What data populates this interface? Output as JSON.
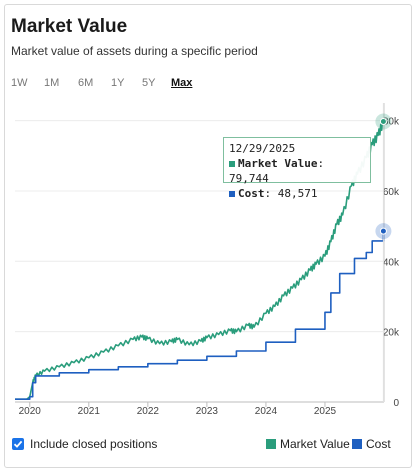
{
  "header": {
    "title": "Market Value",
    "subtitle": "Market value of assets during a specific period"
  },
  "ranges": [
    {
      "label": "1W",
      "active": false
    },
    {
      "label": "1M",
      "active": false
    },
    {
      "label": "6M",
      "active": false
    },
    {
      "label": "1Y",
      "active": false
    },
    {
      "label": "5Y",
      "active": false
    },
    {
      "label": "Max",
      "active": true
    }
  ],
  "tooltip": {
    "date": "12/29/2025",
    "market_value_label": "Market Value",
    "market_value": "79,744",
    "cost_label": "Cost",
    "cost": "48,571"
  },
  "footer": {
    "checkbox_label": "Include closed positions",
    "checkbox_checked": true
  },
  "colors": {
    "market_value": "#2a9d7c",
    "cost": "#1e5fc0"
  },
  "chart_data": {
    "type": "line",
    "x_ticks": [
      "2020",
      "2021",
      "2022",
      "2023",
      "2024",
      "2025"
    ],
    "y_ticks": [
      "0",
      "20k",
      "40k",
      "60k",
      "80k"
    ],
    "ylim": [
      0,
      85000
    ],
    "xlim": [
      2019.75,
      2026.0
    ],
    "legend": [
      "Market Value",
      "Cost"
    ],
    "legend_position": "bottom-right",
    "series": [
      {
        "name": "Market Value",
        "color": "#2a9d7c",
        "points": [
          [
            2019.75,
            800
          ],
          [
            2019.95,
            800
          ],
          [
            2020.0,
            1500
          ],
          [
            2020.05,
            5500
          ],
          [
            2020.1,
            7500
          ],
          [
            2020.25,
            8800
          ],
          [
            2020.5,
            10000
          ],
          [
            2020.75,
            11200
          ],
          [
            2021.0,
            12600
          ],
          [
            2021.25,
            14200
          ],
          [
            2021.5,
            16000
          ],
          [
            2021.75,
            17800
          ],
          [
            2021.9,
            18500
          ],
          [
            2022.0,
            18000
          ],
          [
            2022.2,
            16600
          ],
          [
            2022.4,
            17200
          ],
          [
            2022.5,
            17800
          ],
          [
            2022.7,
            16300
          ],
          [
            2022.9,
            17300
          ],
          [
            2023.0,
            18300
          ],
          [
            2023.2,
            19200
          ],
          [
            2023.4,
            20300
          ],
          [
            2023.5,
            20000
          ],
          [
            2023.7,
            21800
          ],
          [
            2023.8,
            21300
          ],
          [
            2024.0,
            25200
          ],
          [
            2024.15,
            27200
          ],
          [
            2024.3,
            30200
          ],
          [
            2024.45,
            32400
          ],
          [
            2024.6,
            34800
          ],
          [
            2024.75,
            37500
          ],
          [
            2024.85,
            39200
          ],
          [
            2025.0,
            41500
          ],
          [
            2025.1,
            45600
          ],
          [
            2025.2,
            50500
          ],
          [
            2025.3,
            53200
          ],
          [
            2025.45,
            61500
          ],
          [
            2025.55,
            64800
          ],
          [
            2025.7,
            69500
          ],
          [
            2025.8,
            73200
          ],
          [
            2025.9,
            75800
          ],
          [
            2025.99,
            79744
          ]
        ]
      },
      {
        "name": "Cost",
        "color": "#1e5fc0",
        "points": [
          [
            2019.75,
            800
          ],
          [
            2019.95,
            800
          ],
          [
            2020.0,
            1500
          ],
          [
            2020.05,
            5500
          ],
          [
            2020.1,
            7400
          ],
          [
            2020.5,
            8300
          ],
          [
            2021.0,
            9200
          ],
          [
            2021.5,
            10000
          ],
          [
            2022.0,
            10900
          ],
          [
            2022.5,
            11900
          ],
          [
            2023.0,
            13000
          ],
          [
            2023.5,
            14500
          ],
          [
            2024.0,
            17000
          ],
          [
            2024.5,
            20700
          ],
          [
            2025.0,
            25500
          ],
          [
            2025.1,
            31000
          ],
          [
            2025.25,
            36500
          ],
          [
            2025.5,
            40800
          ],
          [
            2025.7,
            42500
          ],
          [
            2025.8,
            45800
          ],
          [
            2025.99,
            48571
          ]
        ]
      }
    ]
  }
}
